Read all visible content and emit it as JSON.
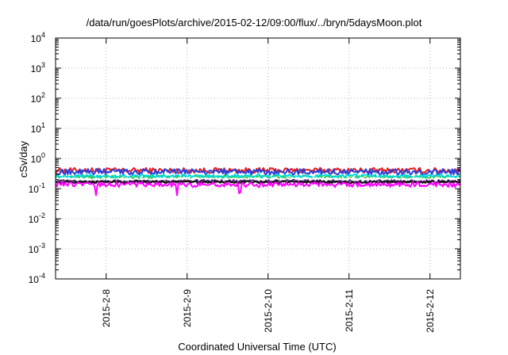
{
  "chart_data": {
    "type": "line",
    "title": "/data/run/goesPlots/archive/2015-02-12/09:00/flux/../bryn/5daysMoon.plot",
    "xlabel": "Coordinated Universal Time (UTC)",
    "ylabel": "cSv/day",
    "yscale": "log",
    "ylim": [
      0.0001,
      10000
    ],
    "y_ticks": [
      {
        "base": "10",
        "exp": "4"
      },
      {
        "base": "10",
        "exp": "3"
      },
      {
        "base": "10",
        "exp": "2"
      },
      {
        "base": "10",
        "exp": "1"
      },
      {
        "base": "10",
        "exp": "0"
      },
      {
        "base": "10",
        "exp": "-1"
      },
      {
        "base": "10",
        "exp": "-2"
      },
      {
        "base": "10",
        "exp": "-3"
      },
      {
        "base": "10",
        "exp": "-4"
      }
    ],
    "xlim": [
      "2015-02-07 09:00",
      "2015-02-12 09:00"
    ],
    "x_ticks": [
      "2015-2-8",
      "2015-2-9",
      "2015-2-10",
      "2015-2-11",
      "2015-2-12"
    ],
    "grid": true,
    "series": [
      {
        "color": "#e81c1c",
        "base_value": 0.4,
        "noise": 0.18,
        "dips": []
      },
      {
        "color": "#2b3fd6",
        "base_value": 0.36,
        "noise": 0.2,
        "dips": []
      },
      {
        "color": "#33c33a",
        "base_value": 0.24,
        "noise": 0.12,
        "dips": []
      },
      {
        "color": "#00d8d8",
        "base_value": 0.26,
        "noise": 0.12,
        "dips": []
      },
      {
        "color": "#ffffff",
        "base_value": 0.21,
        "noise": 0.08,
        "dips": []
      },
      {
        "color": "#5a2a7a",
        "base_value": 0.175,
        "noise": 0.1,
        "dips": []
      },
      {
        "color": "#111111",
        "base_value": 0.165,
        "noise": 0.08,
        "dips": []
      },
      {
        "color": "#ff00ff",
        "base_value": 0.135,
        "noise": 0.16,
        "dips": [
          {
            "x": "2015-02-07 21:00",
            "value": 0.06
          },
          {
            "x": "2015-02-08 21:00",
            "value": 0.06
          },
          {
            "x": "2015-02-09 15:20",
            "value": 0.07
          },
          {
            "x": "2015-02-09 15:50",
            "value": 0.075
          }
        ]
      }
    ]
  }
}
